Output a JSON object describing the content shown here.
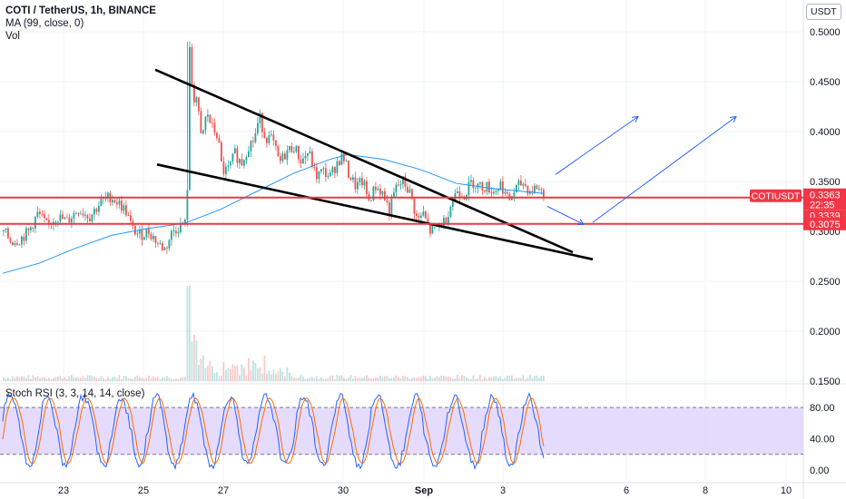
{
  "header": {
    "title": "COTI / TetherUS, 1h, BINANCE",
    "ma_label": "MA (99, close, 0)",
    "vol_label": "Vol",
    "currency": "USDT"
  },
  "price_labels": {
    "symbol": "COTIUSDT",
    "last_price": "0.3363",
    "countdown": "22:35",
    "line1": "0.3339",
    "line2": "0.3075"
  },
  "stoch_label": "Stoch RSI (3, 3, 14, 14, close)",
  "colors": {
    "up": "#26a69a",
    "down": "#ef5350",
    "ma": "#2196f3",
    "trendline": "#000000",
    "support": "#f23645",
    "arrow": "#2962ff",
    "stoch_k": "#2962ff",
    "stoch_d": "#ff6d00",
    "stoch_band": "#e1d5fb"
  },
  "chart_data": [
    {
      "type": "candlestick",
      "title": "COTI / TetherUS, 1h, BINANCE",
      "ylim": [
        0.15,
        0.51
      ],
      "y_ticks": [
        "0.5000",
        "0.4500",
        "0.4000",
        "0.3500",
        "0.3000",
        "0.2500",
        "0.2000",
        "0.1500"
      ],
      "x_ticks": [
        "23",
        "25",
        "27",
        "30",
        "Sep",
        "3",
        "6",
        "8",
        "10"
      ],
      "close_path": [
        [
          0,
          0.3
        ],
        [
          8,
          0.29
        ],
        [
          18,
          0.292
        ],
        [
          28,
          0.3
        ],
        [
          38,
          0.318
        ],
        [
          48,
          0.305
        ],
        [
          58,
          0.315
        ],
        [
          70,
          0.31
        ],
        [
          82,
          0.322
        ],
        [
          95,
          0.315
        ],
        [
          108,
          0.33
        ],
        [
          118,
          0.335
        ],
        [
          128,
          0.327
        ],
        [
          135,
          0.32
        ],
        [
          142,
          0.302
        ],
        [
          150,
          0.296
        ],
        [
          160,
          0.3
        ],
        [
          170,
          0.288
        ],
        [
          178,
          0.282
        ],
        [
          186,
          0.3
        ],
        [
          195,
          0.306
        ],
        [
          202,
          0.308
        ],
        [
          204,
          0.485
        ],
        [
          206,
          0.455
        ],
        [
          209,
          0.445
        ],
        [
          213,
          0.432
        ],
        [
          218,
          0.39
        ],
        [
          224,
          0.42
        ],
        [
          229,
          0.405
        ],
        [
          236,
          0.395
        ],
        [
          241,
          0.36
        ],
        [
          248,
          0.362
        ],
        [
          255,
          0.378
        ],
        [
          262,
          0.368
        ],
        [
          270,
          0.386
        ],
        [
          276,
          0.392
        ],
        [
          282,
          0.415
        ],
        [
          288,
          0.395
        ],
        [
          296,
          0.392
        ],
        [
          304,
          0.368
        ],
        [
          312,
          0.38
        ],
        [
          320,
          0.385
        ],
        [
          328,
          0.37
        ],
        [
          336,
          0.38
        ],
        [
          344,
          0.355
        ],
        [
          352,
          0.36
        ],
        [
          360,
          0.355
        ],
        [
          368,
          0.37
        ],
        [
          374,
          0.375
        ],
        [
          380,
          0.358
        ],
        [
          388,
          0.345
        ],
        [
          396,
          0.35
        ],
        [
          402,
          0.33
        ],
        [
          410,
          0.345
        ],
        [
          418,
          0.338
        ],
        [
          425,
          0.32
        ],
        [
          432,
          0.343
        ],
        [
          440,
          0.35
        ],
        [
          448,
          0.338
        ],
        [
          456,
          0.31
        ],
        [
          462,
          0.318
        ],
        [
          470,
          0.3
        ],
        [
          478,
          0.305
        ],
        [
          486,
          0.31
        ],
        [
          494,
          0.33
        ],
        [
          500,
          0.342
        ],
        [
          508,
          0.337
        ],
        [
          516,
          0.35
        ],
        [
          524,
          0.345
        ],
        [
          532,
          0.345
        ],
        [
          540,
          0.34
        ],
        [
          548,
          0.348
        ],
        [
          556,
          0.33
        ],
        [
          564,
          0.342
        ],
        [
          572,
          0.349
        ],
        [
          580,
          0.34
        ],
        [
          588,
          0.345
        ],
        [
          596,
          0.3363
        ]
      ],
      "ma_path": [
        [
          0,
          0.258
        ],
        [
          40,
          0.268
        ],
        [
          80,
          0.283
        ],
        [
          120,
          0.296
        ],
        [
          160,
          0.303
        ],
        [
          200,
          0.308
        ],
        [
          240,
          0.322
        ],
        [
          280,
          0.34
        ],
        [
          320,
          0.358
        ],
        [
          360,
          0.372
        ],
        [
          380,
          0.377
        ],
        [
          420,
          0.372
        ],
        [
          460,
          0.362
        ],
        [
          500,
          0.348
        ],
        [
          540,
          0.343
        ],
        [
          596,
          0.338
        ]
      ],
      "annotations": {
        "trendline_upper": [
          [
            168,
            0.462
          ],
          [
            628,
            0.279
          ]
        ],
        "trendline_lower": [
          [
            170,
            0.367
          ],
          [
            650,
            0.272
          ]
        ],
        "support_line_1": 0.3339,
        "support_line_2": 0.3075,
        "projection_arrows": [
          [
            [
              609,
              0.357
            ],
            [
              700,
              0.415
            ]
          ],
          [
            [
              600,
              0.325
            ],
            [
              640,
              0.307
            ]
          ],
          [
            [
              650,
              0.309
            ],
            [
              808,
              0.415
            ]
          ]
        ]
      }
    },
    {
      "type": "line",
      "title": "Stoch RSI (3, 3, 14, 14, close)",
      "ylim": [
        -4,
        100
      ],
      "y_ticks": [
        "80.00",
        "40.00",
        "0.00"
      ],
      "band": [
        20,
        80
      ],
      "series": []
    }
  ]
}
